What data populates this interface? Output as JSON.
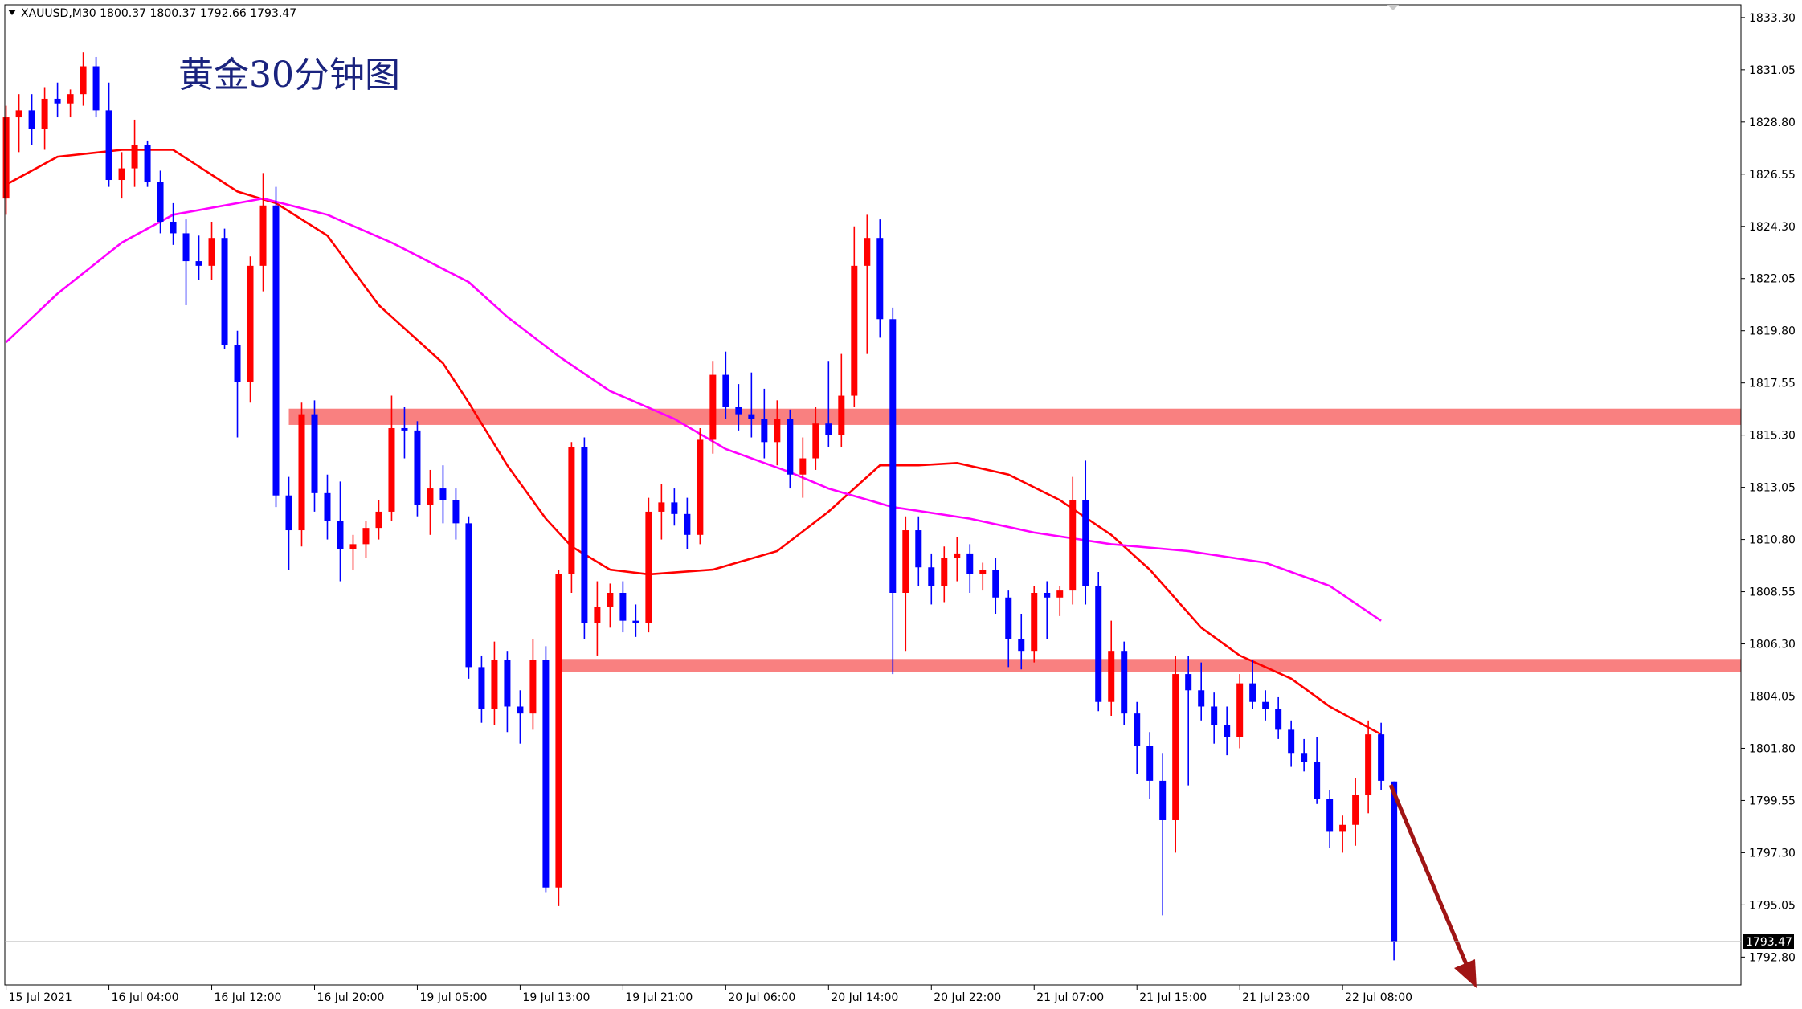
{
  "chart_data": {
    "type": "candlestick",
    "symbol": "XAUUSD,M30",
    "title": "黄金30分钟图",
    "up_color": "#ff0000",
    "down_color": "#0000ff",
    "grid": false,
    "categories": [
      "15 Jul 2021",
      null,
      null,
      null,
      null,
      null,
      null,
      null,
      "16 Jul 04:00",
      null,
      null,
      null,
      null,
      null,
      null,
      null,
      "16 Jul 12:00",
      null,
      null,
      null,
      null,
      null,
      null,
      null,
      "16 Jul 20:00",
      null,
      null,
      null,
      null,
      null,
      null,
      null,
      "19 Jul 05:00",
      null,
      null,
      null,
      null,
      null,
      null,
      null,
      "19 Jul 13:00",
      null,
      null,
      null,
      null,
      null,
      null,
      null,
      "19 Jul 21:00",
      null,
      null,
      null,
      null,
      null,
      null,
      null,
      "20 Jul 06:00",
      null,
      null,
      null,
      null,
      null,
      null,
      null,
      "20 Jul 14:00",
      null,
      null,
      null,
      null,
      null,
      null,
      null,
      "20 Jul 22:00",
      null,
      null,
      null,
      null,
      null,
      null,
      null,
      "21 Jul 07:00",
      null,
      null,
      null,
      null,
      null,
      null,
      null,
      "21 Jul 15:00",
      null,
      null,
      null,
      null,
      null,
      null,
      null,
      "21 Jul 23:00",
      null,
      null,
      null,
      null,
      null,
      null,
      null,
      "22 Jul 08:00",
      null,
      null,
      null,
      null
    ],
    "open": [
      1825.5,
      1829.0,
      1829.3,
      1828.5,
      1829.8,
      1829.6,
      1830.0,
      1831.2,
      1829.3,
      1826.3,
      1826.8,
      1827.8,
      1826.2,
      1824.5,
      1824.0,
      1822.8,
      1822.6,
      1823.8,
      1819.2,
      1817.6,
      1822.6,
      1825.2,
      1812.7,
      1811.2,
      1816.2,
      1812.8,
      1811.6,
      1810.4,
      1810.6,
      1811.3,
      1812.0,
      1815.6,
      1815.5,
      1812.3,
      1813.0,
      1812.5,
      1811.5,
      1805.3,
      1803.5,
      1805.6,
      1803.6,
      1803.3,
      1805.6,
      1795.8,
      1809.3,
      1814.8,
      1807.2,
      1807.9,
      1808.5,
      1807.3,
      1807.2,
      1812.0,
      1812.4,
      1811.9,
      1811.0,
      1815.1,
      1817.9,
      1816.5,
      1816.2,
      1816.0,
      1815.0,
      1816.0,
      1813.6,
      1814.3,
      1815.8,
      1815.3,
      1817.0,
      1822.6,
      1823.8,
      1820.3,
      1808.5,
      1811.2,
      1809.6,
      1808.8,
      1810.0,
      1810.2,
      1809.3,
      1809.5,
      1808.3,
      1806.5,
      1806.0,
      1808.5,
      1808.3,
      1808.6,
      1812.5,
      1808.8,
      1803.8,
      1806.0,
      1803.3,
      1801.9,
      1800.4,
      1798.7,
      1805.0,
      1804.3,
      1803.6,
      1802.8,
      1802.3,
      1804.6,
      1803.8,
      1803.5,
      1802.6,
      1801.6,
      1801.2,
      1799.6,
      1798.2,
      1798.5,
      1799.8,
      1802.4,
      1800.37
    ],
    "high": [
      1829.5,
      1830.0,
      1830.0,
      1830.3,
      1830.5,
      1830.2,
      1831.8,
      1831.6,
      1830.5,
      1827.5,
      1828.9,
      1828.0,
      1826.7,
      1825.3,
      1824.6,
      1823.9,
      1824.5,
      1824.2,
      1819.8,
      1823.0,
      1826.6,
      1826.0,
      1813.5,
      1816.7,
      1816.8,
      1813.6,
      1813.3,
      1811.0,
      1811.6,
      1812.5,
      1817.0,
      1816.5,
      1815.9,
      1813.8,
      1814.0,
      1813.0,
      1811.8,
      1805.8,
      1806.4,
      1806.0,
      1804.3,
      1806.5,
      1806.2,
      1809.5,
      1815.0,
      1815.2,
      1809.0,
      1808.9,
      1809.0,
      1808.0,
      1812.6,
      1813.2,
      1813.0,
      1812.6,
      1815.6,
      1818.5,
      1818.9,
      1817.5,
      1818.0,
      1817.3,
      1816.8,
      1816.4,
      1815.2,
      1816.5,
      1818.5,
      1818.8,
      1824.3,
      1824.8,
      1824.6,
      1820.8,
      1811.8,
      1811.8,
      1810.2,
      1810.5,
      1810.9,
      1810.6,
      1809.8,
      1810.0,
      1808.6,
      1807.6,
      1808.8,
      1809.0,
      1808.8,
      1813.5,
      1814.2,
      1809.4,
      1807.3,
      1806.4,
      1803.8,
      1802.5,
      1801.6,
      1805.8,
      1805.8,
      1805.5,
      1804.2,
      1803.6,
      1805.0,
      1805.6,
      1804.3,
      1804.0,
      1803.0,
      1802.2,
      1802.3,
      1800.0,
      1798.9,
      1800.5,
      1803.0,
      1802.9,
      1800.37
    ],
    "low": [
      1824.8,
      1827.5,
      1827.8,
      1827.6,
      1829.0,
      1829.0,
      1829.5,
      1829.0,
      1826.0,
      1825.5,
      1826.0,
      1826.0,
      1824.0,
      1823.5,
      1820.9,
      1822.0,
      1822.0,
      1819.0,
      1815.2,
      1816.7,
      1821.5,
      1812.2,
      1809.5,
      1810.5,
      1812.0,
      1810.8,
      1809.0,
      1809.5,
      1810.0,
      1810.8,
      1811.6,
      1814.3,
      1811.8,
      1811.0,
      1811.5,
      1810.8,
      1804.8,
      1802.9,
      1802.8,
      1802.5,
      1802.0,
      1802.6,
      1795.6,
      1795.0,
      1808.5,
      1806.5,
      1805.8,
      1807.0,
      1806.8,
      1806.6,
      1806.8,
      1810.8,
      1811.4,
      1810.4,
      1810.6,
      1814.5,
      1816.0,
      1815.5,
      1815.2,
      1814.3,
      1814.0,
      1813.0,
      1812.6,
      1813.8,
      1814.8,
      1814.8,
      1816.5,
      1818.8,
      1819.5,
      1805.0,
      1806.0,
      1808.8,
      1808.0,
      1808.1,
      1809.0,
      1808.5,
      1808.6,
      1807.6,
      1805.3,
      1805.2,
      1805.5,
      1806.5,
      1807.5,
      1808.0,
      1808.0,
      1803.4,
      1803.2,
      1802.8,
      1800.7,
      1799.6,
      1794.6,
      1797.3,
      1800.2,
      1803.0,
      1802.0,
      1801.5,
      1801.8,
      1803.5,
      1803.0,
      1802.2,
      1801.0,
      1800.8,
      1799.4,
      1797.5,
      1797.3,
      1797.6,
      1799.0,
      1800.0,
      1792.66
    ],
    "close": [
      1829.0,
      1829.3,
      1828.5,
      1829.8,
      1829.6,
      1830.0,
      1831.2,
      1829.3,
      1826.3,
      1826.8,
      1827.8,
      1826.2,
      1824.5,
      1824.0,
      1822.8,
      1822.6,
      1823.8,
      1819.2,
      1817.6,
      1822.6,
      1825.2,
      1812.7,
      1811.2,
      1816.2,
      1812.8,
      1811.6,
      1810.4,
      1810.6,
      1811.3,
      1812.0,
      1815.6,
      1815.5,
      1812.3,
      1813.0,
      1812.5,
      1811.5,
      1805.3,
      1803.5,
      1805.6,
      1803.6,
      1803.3,
      1805.6,
      1795.8,
      1809.3,
      1814.8,
      1807.2,
      1807.9,
      1808.5,
      1807.3,
      1807.2,
      1812.0,
      1812.4,
      1811.9,
      1811.0,
      1815.1,
      1817.9,
      1816.5,
      1816.2,
      1816.0,
      1815.0,
      1816.0,
      1813.6,
      1814.3,
      1815.8,
      1815.3,
      1817.0,
      1822.6,
      1823.8,
      1820.3,
      1808.5,
      1811.2,
      1809.6,
      1808.8,
      1810.0,
      1810.2,
      1809.3,
      1809.5,
      1808.3,
      1806.5,
      1806.0,
      1808.5,
      1808.3,
      1808.6,
      1812.5,
      1808.8,
      1803.8,
      1806.0,
      1803.3,
      1801.9,
      1800.4,
      1798.7,
      1805.0,
      1804.3,
      1803.6,
      1802.8,
      1802.3,
      1804.6,
      1803.8,
      1803.5,
      1802.6,
      1801.6,
      1801.2,
      1799.6,
      1798.2,
      1798.5,
      1799.8,
      1802.4,
      1800.4,
      1793.47
    ],
    "lines": [
      {
        "color": "#ff0000",
        "x": [
          0,
          4,
          9,
          13,
          18,
          21,
          25,
          29,
          34,
          36,
          39,
          42,
          44,
          47,
          50,
          55,
          60,
          64,
          68,
          71,
          74,
          78,
          82,
          86,
          89,
          93,
          96,
          100,
          103,
          107
        ],
        "values": [
          1826.1,
          1827.3,
          1827.6,
          1827.6,
          1825.8,
          1825.3,
          1823.9,
          1820.9,
          1818.4,
          1816.7,
          1814.0,
          1811.7,
          1810.5,
          1809.5,
          1809.3,
          1809.5,
          1810.3,
          1812.0,
          1814.0,
          1814.0,
          1814.1,
          1813.6,
          1812.5,
          1811.0,
          1809.5,
          1807.0,
          1805.8,
          1804.8,
          1803.6,
          1802.4
        ]
      },
      {
        "color": "#ff00ff",
        "x": [
          0,
          4,
          9,
          13,
          20,
          25,
          30,
          36,
          39,
          43,
          47,
          52,
          56,
          61,
          64,
          69,
          75,
          80,
          86,
          92,
          98,
          103,
          107
        ],
        "values": [
          1819.3,
          1821.4,
          1823.6,
          1824.8,
          1825.5,
          1824.8,
          1823.6,
          1821.9,
          1820.4,
          1818.7,
          1817.2,
          1816.0,
          1814.7,
          1813.7,
          1813.0,
          1812.2,
          1811.7,
          1811.1,
          1810.6,
          1810.3,
          1809.8,
          1808.8,
          1807.3
        ]
      }
    ],
    "zones": [
      {
        "start": 22,
        "from": 1815.74,
        "to": 1816.44,
        "color": "#f98080"
      },
      {
        "start": 43,
        "from": 1805.1,
        "to": 1805.65,
        "color": "#f98080"
      }
    ],
    "xlim": [
      -0.1,
      135
    ],
    "ylim": [
      1791.6,
      1833.85
    ],
    "yticks": [
      {
        "value": 1833.3,
        "label": "1833.30"
      },
      1831.05,
      {
        "value": 1828.8,
        "label": "1828.80"
      },
      1826.55,
      {
        "value": 1824.3,
        "label": "1824.30"
      },
      1822.05,
      {
        "value": 1819.8,
        "label": "1819.80"
      },
      1817.55,
      {
        "value": 1815.3,
        "label": "1815.30"
      },
      1813.05,
      {
        "value": 1810.8,
        "label": "1810.80"
      },
      1808.55,
      {
        "value": 1806.3,
        "label": "1806.30"
      },
      1804.05,
      {
        "value": 1801.8,
        "label": "1801.80"
      },
      1799.55,
      {
        "value": 1797.3,
        "label": "1797.30"
      },
      1795.05,
      {
        "value": 1792.8,
        "label": "1792.80"
      }
    ]
  }
}
